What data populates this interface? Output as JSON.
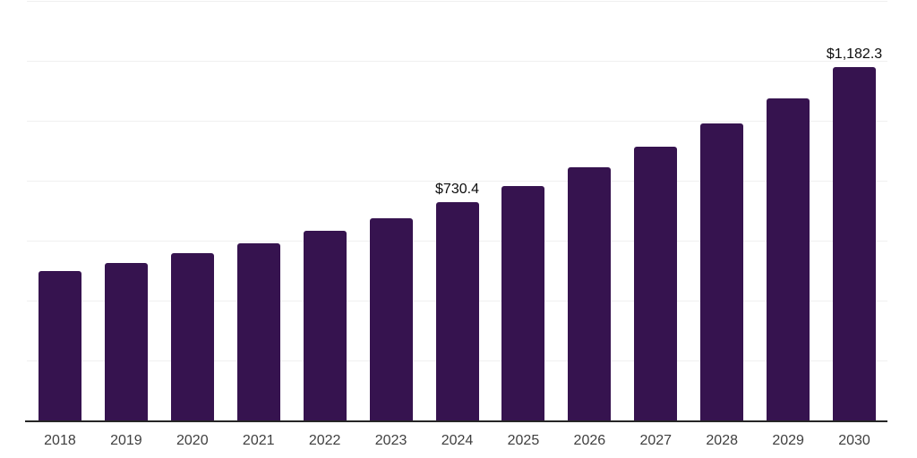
{
  "chart_data": {
    "type": "bar",
    "title": "",
    "xlabel": "",
    "ylabel": "",
    "categories": [
      "2018",
      "2019",
      "2020",
      "2021",
      "2022",
      "2023",
      "2024",
      "2025",
      "2026",
      "2027",
      "2028",
      "2029",
      "2030"
    ],
    "values": [
      502,
      529,
      562,
      595,
      636,
      678,
      730.4,
      785,
      847,
      916,
      993,
      1079,
      1182.3
    ],
    "data_labels": [
      null,
      null,
      null,
      null,
      null,
      null,
      "$730.4",
      null,
      null,
      null,
      null,
      null,
      "$1,182.3"
    ],
    "ylim": [
      0,
      1400
    ],
    "gridline_interval": 200,
    "grid": "horizontal-only",
    "legend": "none",
    "y_axis_tick_labels_visible": false,
    "colors": {
      "bar": "#36134f",
      "gridline": "#f0f0f0",
      "axis_line": "#262626",
      "x_tick_label": "#404040",
      "data_label": "#0d0d0d",
      "background": "#ffffff"
    }
  }
}
